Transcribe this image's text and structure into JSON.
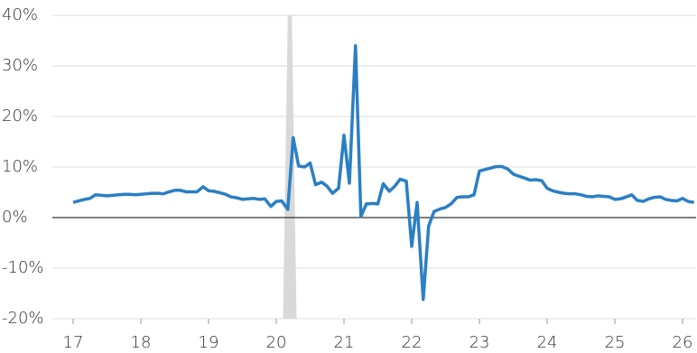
{
  "chart_data": {
    "type": "line",
    "color": "#2b7fc3",
    "grid": true,
    "shade_color": "#d9d9d9",
    "shade": [
      20.1,
      20.3
    ],
    "xlim": [
      17,
      26.2
    ],
    "xticks": [
      17,
      18,
      19,
      20,
      21,
      22,
      23,
      24,
      25,
      26
    ],
    "ylim": [
      -20,
      40
    ],
    "yticks": [
      {
        "value": -20,
        "label": "-20%"
      },
      {
        "value": -10,
        "label": "-10%"
      },
      {
        "value": 0,
        "label": "0%"
      },
      {
        "value": 10,
        "label": "10%"
      },
      {
        "value": 20,
        "label": "20%"
      },
      {
        "value": 30,
        "label": "30%"
      },
      {
        "value": 40,
        "label": "40%"
      }
    ],
    "x": [
      17,
      17.08,
      17.17,
      17.25,
      17.33,
      17.42,
      17.5,
      17.58,
      17.67,
      17.75,
      17.83,
      17.92,
      18,
      18.08,
      18.17,
      18.25,
      18.33,
      18.42,
      18.5,
      18.58,
      18.67,
      18.75,
      18.83,
      18.92,
      19,
      19.08,
      19.17,
      19.25,
      19.33,
      19.42,
      19.5,
      19.58,
      19.67,
      19.75,
      19.83,
      19.92,
      20,
      20.08,
      20.17,
      20.25,
      20.33,
      20.42,
      20.5,
      20.58,
      20.67,
      20.75,
      20.83,
      20.92,
      21,
      21.08,
      21.17,
      21.25,
      21.33,
      21.42,
      21.5,
      21.58,
      21.67,
      21.75,
      21.83,
      21.92,
      22,
      22.08,
      22.17,
      22.25,
      22.33,
      22.42,
      22.5,
      22.58,
      22.67,
      22.75,
      22.83,
      22.92,
      23,
      23.08,
      23.17,
      23.25,
      23.33,
      23.42,
      23.5,
      23.58,
      23.67,
      23.75,
      23.83,
      23.92,
      24,
      24.08,
      24.17,
      24.25,
      24.33,
      24.42,
      24.5,
      24.58,
      24.67,
      24.75,
      24.83,
      24.92,
      25,
      25.08,
      25.17,
      25.25,
      25.33,
      25.42,
      25.5,
      25.58,
      25.67,
      25.75,
      25.83,
      25.92,
      26,
      26.08,
      26.17
    ],
    "values": [
      3,
      3.3,
      3.6,
      3.8,
      4.5,
      4.4,
      4.3,
      4.4,
      4.5,
      4.6,
      4.6,
      4.5,
      4.6,
      4.7,
      4.8,
      4.8,
      4.7,
      5.1,
      5.4,
      5.4,
      5.1,
      5.1,
      5.1,
      6.1,
      5.3,
      5.2,
      4.9,
      4.6,
      4.1,
      3.9,
      3.6,
      3.7,
      3.8,
      3.6,
      3.7,
      2.2,
      3.2,
      3.3,
      1.6,
      15.8,
      10.2,
      10,
      10.8,
      6.5,
      7,
      6.2,
      4.8,
      5.8,
      16.3,
      6.8,
      34,
      0.2,
      2.7,
      2.8,
      2.7,
      6.7,
      5.2,
      6.2,
      7.6,
      7.2,
      -5.7,
      3,
      -16.2,
      -1.7,
      1.2,
      1.7,
      2,
      2.7,
      4,
      4.1,
      4.1,
      4.5,
      9.2,
      9.5,
      9.8,
      10.1,
      10.1,
      9.6,
      8.6,
      8.2,
      7.8,
      7.4,
      7.5,
      7.3,
      5.8,
      5.3,
      5,
      4.8,
      4.7,
      4.7,
      4.5,
      4.2,
      4.1,
      4.3,
      4.2,
      4.1,
      3.6,
      3.7,
      4.1,
      4.5,
      3.4,
      3.2,
      3.7,
      4,
      4.1,
      3.6,
      3.4,
      3.3,
      3.8,
      3.2,
      3
    ]
  }
}
